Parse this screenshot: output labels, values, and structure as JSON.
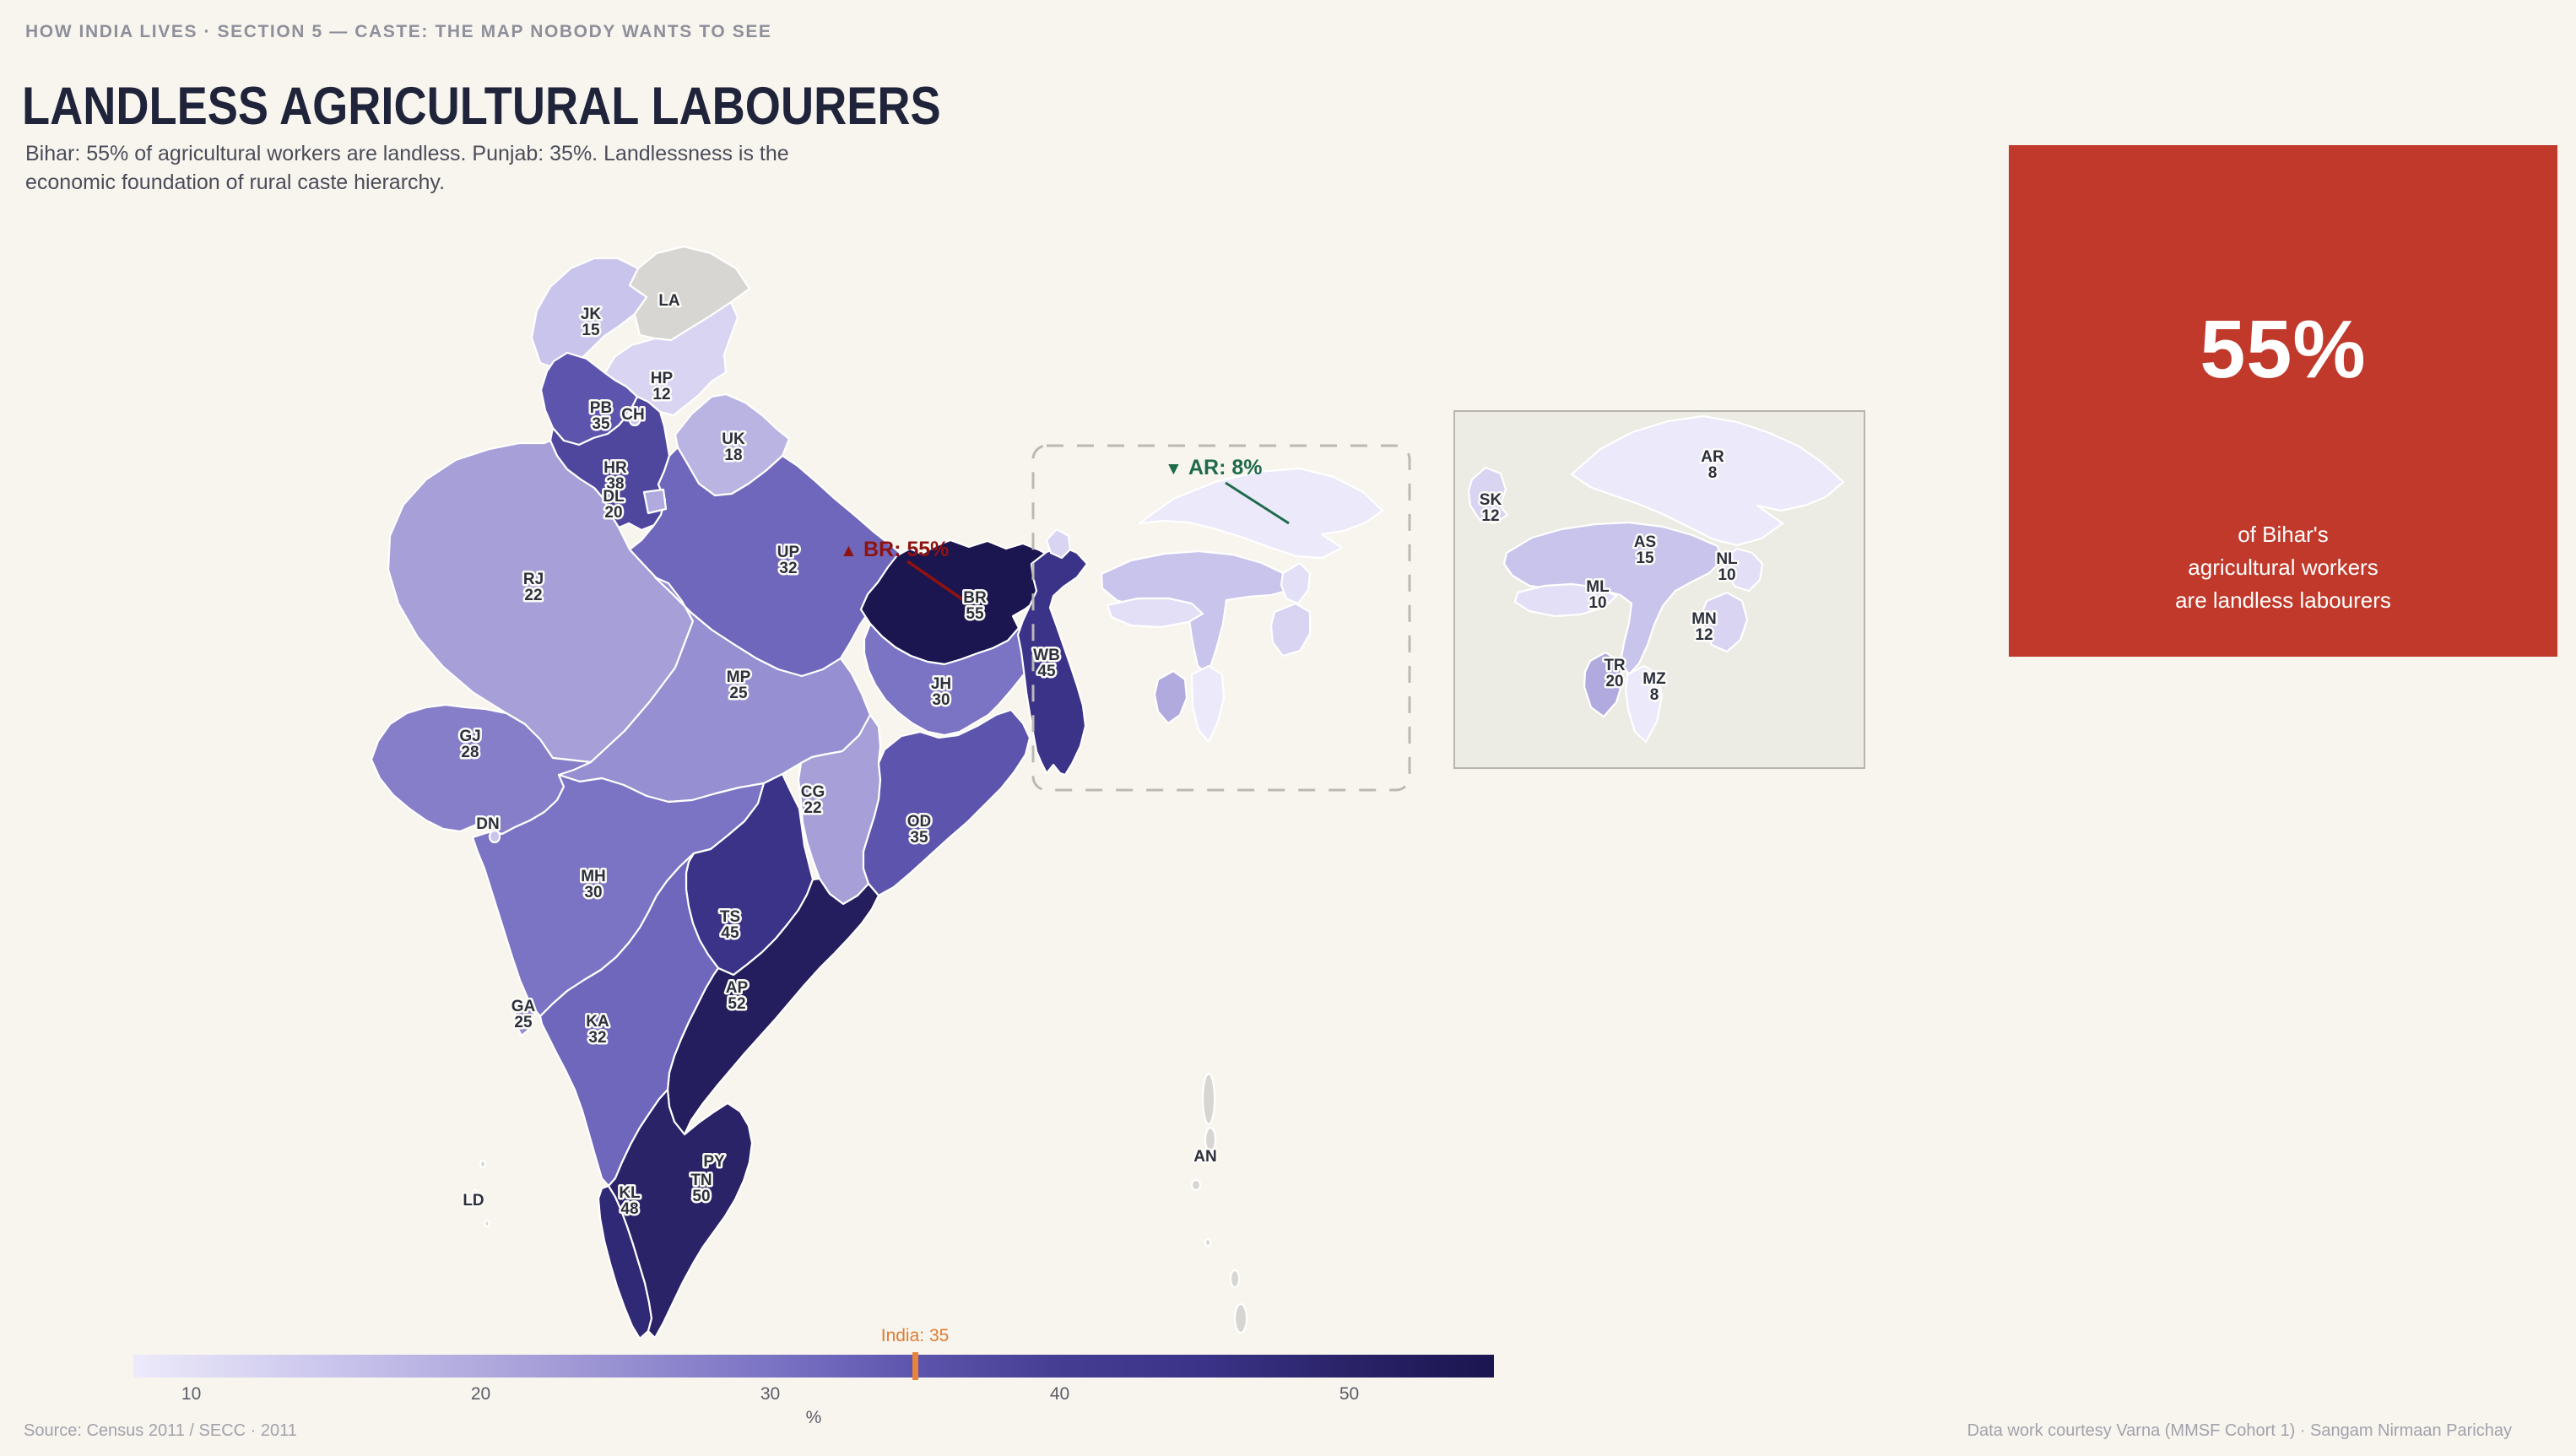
{
  "page": {
    "kicker": "HOW INDIA LIVES · SECTION 5 — CASTE: THE MAP NOBODY WANTS TO SEE",
    "title": "LANDLESS AGRICULTURAL LABOURERS",
    "subtitle": "Bihar: 55% of agricultural workers are landless. Punjab: 35%. Landlessness is the economic foundation of rural caste hierarchy."
  },
  "callout": {
    "value": "55%",
    "caption": [
      "of Bihar's",
      "agricultural workers",
      "are landless labourers"
    ]
  },
  "annotations": {
    "max": {
      "symbol": "▲",
      "text": "BR: 55%",
      "color": "#8e1310"
    },
    "min": {
      "symbol": "▼",
      "text": "AR: 8%",
      "color": "#1e6b4c"
    }
  },
  "legend": {
    "ticks": [
      "10",
      "20",
      "30",
      "40",
      "50"
    ],
    "tick_values": [
      10,
      20,
      30,
      40,
      50
    ],
    "axis_label": "%",
    "marker_label": "India: 35",
    "marker_value": 35
  },
  "footer": {
    "source": "Source: Census 2011 / SECC · 2011",
    "credit": "Data work courtesy Varna (MMSF Cohort 1) · Sangam Nirmaan Parichay"
  },
  "colors": {
    "background": "#f7f5ee",
    "card": "#c0392b",
    "no_data": "#d8d6d2",
    "inset_bg": "#ecebe4",
    "inset_border": "#b7b5ae",
    "dashed_box": "#bbb9b3",
    "state_border": "#ffffff",
    "label_ink": "#2b303c",
    "label_halo": "#fcfbf7",
    "marker": "#e8823c",
    "marker_text": "#e07b30"
  },
  "chart_data": {
    "type": "choropleth",
    "title": "Landless Agricultural Labourers",
    "metric": "Landless agricultural labourers, % of agricultural workers",
    "unit": "%",
    "color_domain": [
      8,
      55
    ],
    "national_average": 35,
    "legend_ticks": [
      10,
      20,
      30,
      40,
      50
    ],
    "color_scale": [
      [
        8,
        "#eceafa"
      ],
      [
        15,
        "#c9c4ec"
      ],
      [
        22,
        "#a69fd8"
      ],
      [
        30,
        "#7b73c4"
      ],
      [
        35,
        "#5d55ad"
      ],
      [
        40,
        "#453d92"
      ],
      [
        45,
        "#3a3388"
      ],
      [
        50,
        "#2a2368"
      ],
      [
        55,
        "#1b1550"
      ]
    ],
    "states": [
      {
        "code": "JK",
        "value": 15
      },
      {
        "code": "LA",
        "value": null
      },
      {
        "code": "HP",
        "value": 12
      },
      {
        "code": "PB",
        "value": 35
      },
      {
        "code": "CH",
        "value": null
      },
      {
        "code": "UK",
        "value": 18
      },
      {
        "code": "HR",
        "value": 38
      },
      {
        "code": "DL",
        "value": 20
      },
      {
        "code": "RJ",
        "value": 22
      },
      {
        "code": "UP",
        "value": 32
      },
      {
        "code": "BR",
        "value": 55
      },
      {
        "code": "WB",
        "value": 45
      },
      {
        "code": "JH",
        "value": 30
      },
      {
        "code": "MP",
        "value": 25
      },
      {
        "code": "CG",
        "value": 22
      },
      {
        "code": "OD",
        "value": 35
      },
      {
        "code": "GJ",
        "value": 28
      },
      {
        "code": "DN",
        "value": null
      },
      {
        "code": "MH",
        "value": 30
      },
      {
        "code": "TS",
        "value": 45
      },
      {
        "code": "AP",
        "value": 52
      },
      {
        "code": "GA",
        "value": 25
      },
      {
        "code": "KA",
        "value": 32
      },
      {
        "code": "KL",
        "value": 48
      },
      {
        "code": "TN",
        "value": 50
      },
      {
        "code": "PY",
        "value": null
      },
      {
        "code": "LD",
        "value": null
      },
      {
        "code": "AN",
        "value": null
      },
      {
        "code": "SK",
        "value": 12
      },
      {
        "code": "AR",
        "value": 8
      },
      {
        "code": "AS",
        "value": 15
      },
      {
        "code": "NL",
        "value": 10
      },
      {
        "code": "ML",
        "value": 10
      },
      {
        "code": "MN",
        "value": 12
      },
      {
        "code": "TR",
        "value": 20
      },
      {
        "code": "MZ",
        "value": 8
      }
    ]
  }
}
